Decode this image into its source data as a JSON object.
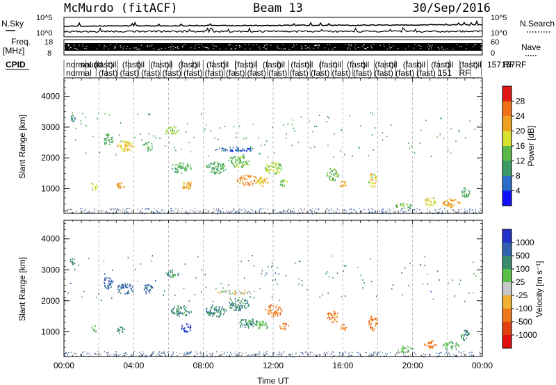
{
  "header": {
    "station": "McMurdo (fitACF)",
    "beam": "Beam 13",
    "date": "30/Sep/2016"
  },
  "top_panels": {
    "nsky_label": "N.Sky",
    "nsearch_label": "N.Search",
    "freq_label": "Freq.",
    "freq_unit": "[MHz]",
    "nave_label": "Nave",
    "cpid_label": "CPID",
    "noise_ticks": [
      "10^5",
      "10^0"
    ],
    "freq_ticks": [
      "18",
      "8"
    ],
    "nave_ticks": [
      "60",
      "0"
    ],
    "cpid_row1": [
      "normal",
      "sound",
      "(fast)",
      "oil",
      "(fast)",
      "oil",
      "(fast)",
      "oil",
      "(fast)",
      "oil",
      "(fast)",
      "oil",
      "(fast)",
      "oil",
      "(fast)",
      "oil",
      "(fast)",
      "oil",
      "(fast)",
      "oil",
      "(fast)",
      "oil",
      "(fast)",
      "oil",
      "(fast)",
      "oil",
      "(fast)",
      "oil",
      "(fast)",
      "oil",
      "157 RF",
      "157",
      "RF"
    ],
    "cpid_row2": [
      "normal",
      "(fast)",
      "(fast)",
      "(fast)",
      "(fast)",
      "(fast)",
      "(fast)",
      "(fast)",
      "(fast)",
      "(fast)",
      "(fast)",
      "(fast)",
      "(fast)",
      "(fast)",
      "(fast)",
      "(fast)",
      "(fast)",
      "151",
      "RF"
    ]
  },
  "chart_data": [
    {
      "type": "heatmap",
      "panel": "power",
      "ylabel": "Slant Range [km]",
      "xlabel": "",
      "ylim": [
        200,
        4600
      ],
      "yticks": [
        1000,
        2000,
        3000,
        4000
      ],
      "xlim": [
        0,
        24
      ],
      "colorbar": {
        "label": "Power [dB]",
        "ticks": [
          4,
          8,
          12,
          16,
          20,
          24,
          28
        ],
        "colors": [
          "#1010ff",
          "#2a6cc8",
          "#3a9a66",
          "#58b848",
          "#d8e030",
          "#f0a020",
          "#f07018",
          "#e01818"
        ],
        "range": [
          0,
          32
        ]
      },
      "blobs": [
        {
          "t": 0.5,
          "r": 3300,
          "dt": 0.3,
          "dr": 250,
          "v": 10
        },
        {
          "t": 1.7,
          "r": 1100,
          "dt": 0.4,
          "dr": 250,
          "v": 18
        },
        {
          "t": 2.5,
          "r": 2600,
          "dt": 0.6,
          "dr": 400,
          "v": 12
        },
        {
          "t": 3.5,
          "r": 2400,
          "dt": 1.0,
          "dr": 350,
          "v": 20
        },
        {
          "t": 3.2,
          "r": 1100,
          "dt": 0.5,
          "dr": 250,
          "v": 22
        },
        {
          "t": 4.8,
          "r": 2400,
          "dt": 0.6,
          "dr": 300,
          "v": 14
        },
        {
          "t": 6.2,
          "r": 2900,
          "dt": 0.8,
          "dr": 250,
          "v": 16
        },
        {
          "t": 6.7,
          "r": 1700,
          "dt": 1.2,
          "dr": 350,
          "v": 12
        },
        {
          "t": 7.0,
          "r": 1150,
          "dt": 0.6,
          "dr": 300,
          "v": 22
        },
        {
          "t": 8.7,
          "r": 1700,
          "dt": 1.2,
          "dr": 400,
          "v": 12
        },
        {
          "t": 10.0,
          "r": 1900,
          "dt": 1.2,
          "dr": 400,
          "v": 14
        },
        {
          "t": 10.5,
          "r": 1300,
          "dt": 1.2,
          "dr": 350,
          "v": 24
        },
        {
          "t": 11.4,
          "r": 1250,
          "dt": 0.8,
          "dr": 300,
          "v": 20
        },
        {
          "t": 12.0,
          "r": 1700,
          "dt": 1.0,
          "dr": 400,
          "v": 16
        },
        {
          "t": 12.6,
          "r": 1200,
          "dt": 0.5,
          "dr": 250,
          "v": 14
        },
        {
          "t": 9.8,
          "r": 2300,
          "dt": 2.2,
          "dr": 150,
          "v": 6
        },
        {
          "t": 15.4,
          "r": 1500,
          "dt": 0.7,
          "dr": 450,
          "v": 14
        },
        {
          "t": 16.0,
          "r": 1150,
          "dt": 0.4,
          "dr": 250,
          "v": 22
        },
        {
          "t": 17.7,
          "r": 1300,
          "dt": 0.5,
          "dr": 500,
          "v": 18
        },
        {
          "t": 19.5,
          "r": 450,
          "dt": 1.0,
          "dr": 200,
          "v": 14
        },
        {
          "t": 21.0,
          "r": 600,
          "dt": 0.7,
          "dr": 300,
          "v": 18
        },
        {
          "t": 22.2,
          "r": 550,
          "dt": 1.0,
          "dr": 300,
          "v": 22
        },
        {
          "t": 23.0,
          "r": 900,
          "dt": 0.5,
          "dr": 350,
          "v": 12
        }
      ]
    },
    {
      "type": "heatmap",
      "panel": "velocity",
      "ylabel": "Slant Range [km]",
      "xlabel": "Time UT",
      "ylim": [
        200,
        4600
      ],
      "yticks": [
        1000,
        2000,
        3000,
        4000
      ],
      "xlim": [
        0,
        24
      ],
      "xticks": [
        "00:00",
        "04:00",
        "08:00",
        "12:00",
        "16:00",
        "20:00",
        "00:00"
      ],
      "colorbar": {
        "label": "Velocity [m s⁻¹]",
        "ticks": [
          "1000",
          "500",
          "100",
          "25",
          "-25",
          "-100",
          "-500",
          "-1000"
        ],
        "colors": [
          "#2030c8",
          "#3060b0",
          "#3a8a6e",
          "#58c048",
          "#c8c8c8",
          "#f0b030",
          "#f07818",
          "#e04010",
          "#e01010"
        ]
      },
      "blobs": [
        {
          "t": 0.5,
          "r": 3300,
          "dt": 0.3,
          "dr": 250,
          "v": 2
        },
        {
          "t": 1.7,
          "r": 1100,
          "dt": 0.4,
          "dr": 250,
          "v": 3
        },
        {
          "t": 2.5,
          "r": 2600,
          "dt": 0.6,
          "dr": 400,
          "v": 1
        },
        {
          "t": 3.5,
          "r": 2400,
          "dt": 1.0,
          "dr": 350,
          "v": 1
        },
        {
          "t": 3.2,
          "r": 1100,
          "dt": 0.5,
          "dr": 250,
          "v": 2
        },
        {
          "t": 4.8,
          "r": 2400,
          "dt": 0.6,
          "dr": 300,
          "v": 1
        },
        {
          "t": 6.2,
          "r": 2900,
          "dt": 0.8,
          "dr": 250,
          "v": 2
        },
        {
          "t": 6.7,
          "r": 1700,
          "dt": 1.2,
          "dr": 350,
          "v": 2
        },
        {
          "t": 7.0,
          "r": 1150,
          "dt": 0.6,
          "dr": 300,
          "v": 0
        },
        {
          "t": 8.7,
          "r": 1700,
          "dt": 1.2,
          "dr": 400,
          "v": 2
        },
        {
          "t": 10.0,
          "r": 1900,
          "dt": 1.2,
          "dr": 400,
          "v": 2
        },
        {
          "t": 10.5,
          "r": 1300,
          "dt": 1.2,
          "dr": 350,
          "v": 2
        },
        {
          "t": 11.4,
          "r": 1250,
          "dt": 0.8,
          "dr": 300,
          "v": 3
        },
        {
          "t": 12.0,
          "r": 1700,
          "dt": 1.0,
          "dr": 400,
          "v": 6
        },
        {
          "t": 12.6,
          "r": 1200,
          "dt": 0.5,
          "dr": 250,
          "v": 6
        },
        {
          "t": 9.8,
          "r": 2300,
          "dt": 2.2,
          "dr": 150,
          "v": 4
        },
        {
          "t": 15.4,
          "r": 1500,
          "dt": 0.7,
          "dr": 450,
          "v": 6
        },
        {
          "t": 16.0,
          "r": 1150,
          "dt": 0.4,
          "dr": 250,
          "v": 6
        },
        {
          "t": 17.7,
          "r": 1300,
          "dt": 0.5,
          "dr": 500,
          "v": 6
        },
        {
          "t": 19.5,
          "r": 450,
          "dt": 1.0,
          "dr": 200,
          "v": 3
        },
        {
          "t": 21.0,
          "r": 600,
          "dt": 0.7,
          "dr": 300,
          "v": 6
        },
        {
          "t": 22.2,
          "r": 550,
          "dt": 1.0,
          "dr": 300,
          "v": 3
        },
        {
          "t": 23.0,
          "r": 900,
          "dt": 0.5,
          "dr": 350,
          "v": 2
        }
      ]
    }
  ]
}
